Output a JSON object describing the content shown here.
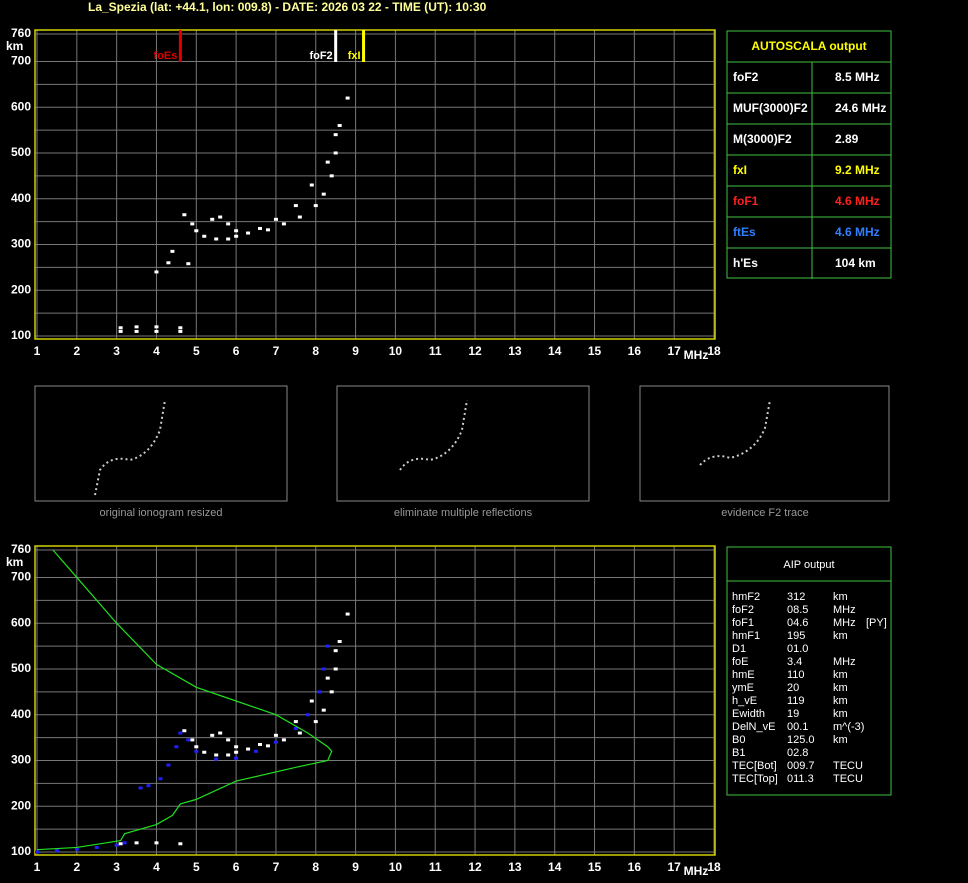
{
  "title": "La_Spezia (lat: +44.1, lon: 009.8) - DATE: 2026 03 22 - TIME (UT): 10:30",
  "chart_data": [
    {
      "type": "scatter",
      "xlim": [
        1,
        18
      ],
      "ylim": [
        100,
        760
      ],
      "xticks": [
        1,
        2,
        3,
        4,
        5,
        6,
        7,
        8,
        9,
        10,
        11,
        12,
        13,
        14,
        15,
        16,
        17,
        18
      ],
      "yticks": [
        100,
        200,
        300,
        400,
        500,
        600,
        700,
        760
      ],
      "y_minor_ticks": [
        150,
        250,
        350,
        450,
        550,
        650
      ],
      "xlabel": "MHz",
      "ylabel": "km",
      "grid": true,
      "markers": [
        {
          "label": "foEs",
          "x": 4.6,
          "color": "#e00000"
        },
        {
          "label": "foF2",
          "x": 8.5,
          "color": "#ffffff"
        },
        {
          "label": "fxI",
          "x": 9.2,
          "color": "#ffff00"
        }
      ],
      "series": [
        {
          "color": "#ffffff",
          "x": [
            4.7,
            4.9,
            5.0,
            5.2,
            5.5,
            5.8,
            6.0,
            6.3,
            6.8,
            7.2,
            7.6,
            8.0,
            8.2,
            8.4,
            8.5,
            8.5,
            5.4,
            5.6,
            5.8,
            6.0,
            6.6,
            7.0,
            7.5,
            7.9,
            8.3,
            8.6,
            8.8,
            3.1,
            3.5,
            4.0,
            4.6,
            3.1,
            3.5,
            4.0,
            4.6,
            4.0,
            4.3,
            4.4,
            4.8
          ],
          "values": [
            365,
            345,
            330,
            318,
            312,
            312,
            318,
            325,
            332,
            345,
            360,
            385,
            410,
            450,
            500,
            540,
            355,
            360,
            345,
            330,
            335,
            355,
            385,
            430,
            480,
            560,
            620,
            118,
            120,
            120,
            118,
            110,
            110,
            110,
            110,
            240,
            260,
            285,
            258
          ]
        }
      ]
    },
    {
      "type": "scatter",
      "xlim": [
        1,
        18
      ],
      "ylim": [
        100,
        760
      ],
      "xticks": [
        1,
        2,
        3,
        4,
        5,
        6,
        7,
        8,
        9,
        10,
        11,
        12,
        13,
        14,
        15,
        16,
        17,
        18
      ],
      "yticks": [
        100,
        200,
        300,
        400,
        500,
        600,
        700,
        760
      ],
      "y_minor_ticks": [
        150,
        250,
        350,
        450,
        550,
        650
      ],
      "xlabel": "MHz",
      "ylabel": "km",
      "grid": true,
      "series": [
        {
          "color": "#ffffff",
          "x": [
            4.7,
            4.9,
            5.0,
            5.2,
            5.5,
            5.8,
            6.0,
            6.3,
            6.8,
            7.2,
            7.6,
            8.0,
            8.2,
            8.4,
            8.5,
            8.5,
            5.4,
            5.6,
            5.8,
            6.0,
            6.6,
            7.0,
            7.5,
            7.9,
            8.3,
            8.6,
            8.8,
            3.1,
            3.5,
            4.0,
            4.6
          ],
          "values": [
            365,
            345,
            330,
            318,
            312,
            312,
            318,
            325,
            332,
            345,
            360,
            385,
            410,
            450,
            500,
            540,
            355,
            360,
            345,
            330,
            335,
            355,
            385,
            430,
            480,
            560,
            620,
            118,
            120,
            120,
            118
          ]
        },
        {
          "color": "#2020ff",
          "x": [
            1.0,
            1.5,
            2.0,
            2.5,
            3.0,
            3.2,
            3.6,
            3.8,
            4.1,
            4.3,
            4.5,
            4.6,
            4.8,
            5.0,
            5.5,
            6.0,
            6.5,
            7.0,
            7.5,
            7.8,
            8.1,
            8.2,
            8.3
          ],
          "values": [
            100,
            103,
            106,
            110,
            115,
            120,
            240,
            245,
            260,
            290,
            330,
            360,
            345,
            320,
            303,
            305,
            320,
            340,
            370,
            400,
            450,
            500,
            550
          ]
        },
        {
          "color": "#20e020",
          "type": "line",
          "x": [
            1.4,
            2.0,
            3.0,
            4.0,
            5.0,
            6.0,
            7.0,
            7.8,
            8.3,
            8.4,
            8.3,
            7.5,
            6.0,
            5.0,
            4.6,
            4.4,
            4.0,
            3.2,
            3.1,
            2.0,
            1.0
          ],
          "values": [
            760,
            700,
            600,
            510,
            460,
            430,
            400,
            360,
            330,
            320,
            300,
            285,
            255,
            215,
            205,
            180,
            160,
            140,
            125,
            110,
            105
          ]
        }
      ]
    }
  ],
  "autoscala": {
    "title": "AUTOSCALA output",
    "rows": [
      {
        "label": "foF2",
        "value": "8.5 MHz",
        "color": "#ffffff"
      },
      {
        "label": "MUF(3000)F2",
        "value": "24.6 MHz",
        "color": "#ffffff"
      },
      {
        "label": "M(3000)F2",
        "value": "2.89",
        "color": "#ffffff"
      },
      {
        "label": "fxI",
        "value": "9.2 MHz",
        "color": "#ffff00"
      },
      {
        "label": "foF1",
        "value": "4.6 MHz",
        "color": "#ff2020"
      },
      {
        "label": "ftEs",
        "value": "4.6 MHz",
        "color": "#3080ff"
      },
      {
        "label": "h'Es",
        "value": "104    km",
        "color": "#ffffff"
      }
    ]
  },
  "thumbnails": [
    "original ionogram resized",
    "eliminate multiple reflections",
    "evidence F2 trace"
  ],
  "aip": {
    "title": "AIP output",
    "rows": [
      [
        "hmF2",
        "312",
        "km"
      ],
      [
        "foF2",
        "08.5",
        "MHz"
      ],
      [
        "foF1",
        "04.6",
        "MHz",
        "[PY]"
      ],
      [
        "hmF1",
        "195",
        "km"
      ],
      [
        "D1",
        "01.0"
      ],
      [
        "foE",
        "3.4",
        "MHz"
      ],
      [
        "hmE",
        "110",
        "km"
      ],
      [
        "ymE",
        "20",
        "km"
      ],
      [
        "h_vE",
        "119",
        "km"
      ],
      [
        "Ewidth",
        "19",
        "km"
      ],
      [
        "DelN_vE",
        "00.1",
        "m^(-3)"
      ],
      [
        "B0",
        "125.0",
        "km"
      ],
      [
        "B1",
        "02.8"
      ],
      [
        "TEC[Bot]",
        "009.7",
        "TECU"
      ],
      [
        "TEC[Top]",
        "011.3",
        "TECU"
      ]
    ]
  }
}
